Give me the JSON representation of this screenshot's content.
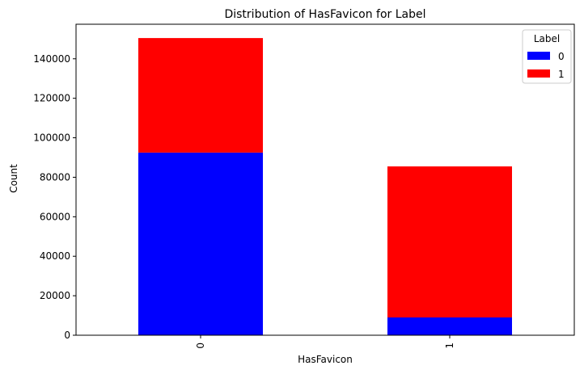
{
  "chart_data": {
    "type": "bar",
    "stacked": true,
    "title": "Distribution of HasFavicon for Label",
    "xlabel": "HasFavicon",
    "ylabel": "Count",
    "categories": [
      "0",
      "1"
    ],
    "series": [
      {
        "name": "0",
        "color": "#0000ff",
        "values": [
          92500,
          9000
        ]
      },
      {
        "name": "1",
        "color": "#ff0000",
        "values": [
          58000,
          76500
        ]
      }
    ],
    "ylim": [
      0,
      157500
    ],
    "yticks": [
      0,
      20000,
      40000,
      60000,
      80000,
      100000,
      120000,
      140000
    ],
    "ytick_labels": [
      "0",
      "20000",
      "40000",
      "60000",
      "80000",
      "100000",
      "120000",
      "140000"
    ],
    "legend": {
      "title": "Label",
      "position": "top-right"
    },
    "grid": false
  }
}
